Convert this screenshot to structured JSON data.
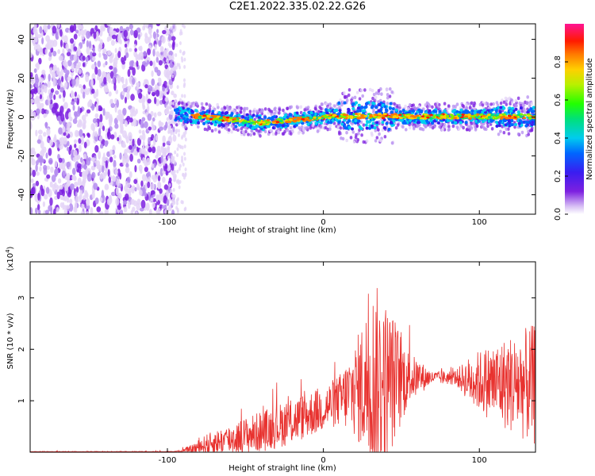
{
  "title": "C2E1.2022.335.02.22.G26",
  "chart_data": [
    {
      "type": "heatmap",
      "title": "C2E1.2022.335.02.22.G26",
      "xlabel": "Height of straight line (km)",
      "ylabel": "Frequency (Hz)",
      "xlim": [
        -188,
        136
      ],
      "ylim": [
        -50,
        48
      ],
      "x_ticks": [
        -100,
        0,
        100
      ],
      "y_ticks": [
        -40,
        -20,
        0,
        20,
        40
      ],
      "colorbar": {
        "label": "Normalized spectral amplitude",
        "range": [
          0,
          1
        ],
        "ticks": [
          "0.0",
          "0.2",
          "0.4",
          "0.6",
          "0.8"
        ],
        "colormap": "rainbow (purple to red to pink)"
      },
      "features": {
        "noise_region_x": [
          -188,
          -95
        ],
        "signal_band_x": [
          -95,
          136
        ],
        "signal_band_center_frequency_hz": 0
      },
      "grid": false
    },
    {
      "type": "line",
      "xlabel": "Height of straight line (km)",
      "ylabel": "SNR (10 * v/v)",
      "y_multiplier_label": "(x10^4)",
      "xlim": [
        -188,
        136
      ],
      "ylim": [
        0,
        3.7
      ],
      "x_ticks": [
        -100,
        0,
        100
      ],
      "y_ticks": [
        1,
        2,
        3
      ],
      "series": [
        {
          "color": "#e8322f",
          "envelope": [
            {
              "x": -188,
              "mean": 0.0,
              "amp": 0.02
            },
            {
              "x": -95,
              "mean": 0.0,
              "amp": 0.02
            },
            {
              "x": -85,
              "mean": 0.05,
              "amp": 0.08
            },
            {
              "x": -75,
              "mean": 0.15,
              "amp": 0.2
            },
            {
              "x": -60,
              "mean": 0.25,
              "amp": 0.3
            },
            {
              "x": -40,
              "mean": 0.4,
              "amp": 0.4
            },
            {
              "x": -20,
              "mean": 0.6,
              "amp": 0.45
            },
            {
              "x": 0,
              "mean": 0.85,
              "amp": 0.45
            },
            {
              "x": 10,
              "mean": 1.0,
              "amp": 0.5
            },
            {
              "x": 20,
              "mean": 1.2,
              "amp": 0.9
            },
            {
              "x": 33,
              "mean": 1.4,
              "amp": 1.9
            },
            {
              "x": 45,
              "mean": 1.4,
              "amp": 1.3
            },
            {
              "x": 55,
              "mean": 1.45,
              "amp": 0.5
            },
            {
              "x": 70,
              "mean": 1.45,
              "amp": 0.12
            },
            {
              "x": 85,
              "mean": 1.45,
              "amp": 0.15
            },
            {
              "x": 95,
              "mean": 1.4,
              "amp": 0.5
            },
            {
              "x": 110,
              "mean": 1.35,
              "amp": 0.8
            },
            {
              "x": 136,
              "mean": 1.3,
              "amp": 1.2
            }
          ]
        }
      ],
      "grid": false
    }
  ]
}
